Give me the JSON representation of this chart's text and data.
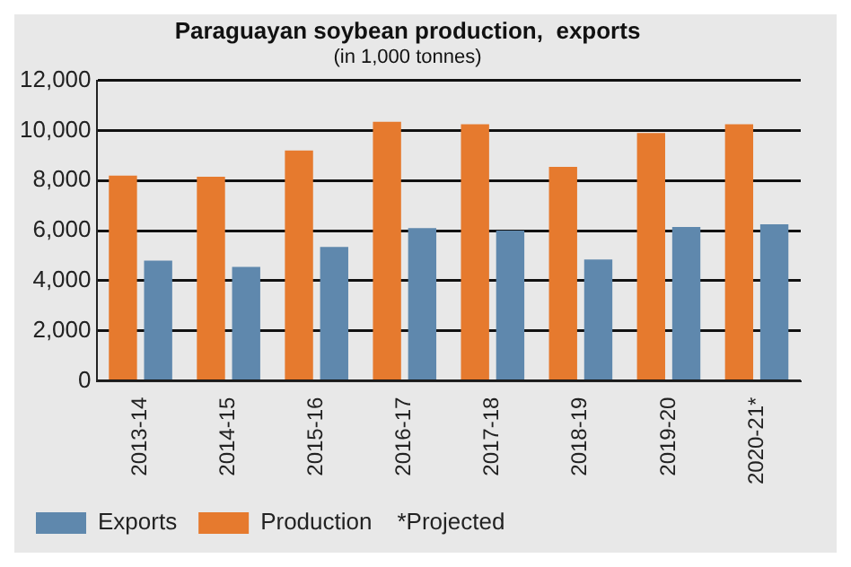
{
  "chart_data": {
    "type": "bar",
    "title": "Paraguayan soybean production,  exports",
    "subtitle": "(in 1,000 tonnes)",
    "categories": [
      "2013-14",
      "2014-15",
      "2015-16",
      "2016-17",
      "2017-18",
      "2018-19",
      "2019-20",
      "2020-21*"
    ],
    "series": [
      {
        "name": "Production",
        "color": "#e67a2e",
        "values": [
          8200,
          8150,
          9200,
          10350,
          10250,
          8550,
          9900,
          10250
        ]
      },
      {
        "name": "Exports",
        "color": "#5f88ad",
        "values": [
          4800,
          4550,
          5350,
          6100,
          6000,
          4850,
          6150,
          6250
        ]
      }
    ],
    "ylim": [
      0,
      12000
    ],
    "yticks": [
      0,
      {
        "value": 2000,
        "label": "2,000"
      },
      {
        "value": 4000,
        "label": "4,000"
      },
      {
        "value": 6000,
        "label": "6,000"
      },
      {
        "value": 8000,
        "label": "8,000"
      },
      {
        "value": 10000,
        "label": "10,000"
      },
      {
        "value": 12000,
        "label": "12,000"
      }
    ],
    "grid": "y",
    "legend": "bottom",
    "annotations": [
      "*Projected"
    ]
  }
}
